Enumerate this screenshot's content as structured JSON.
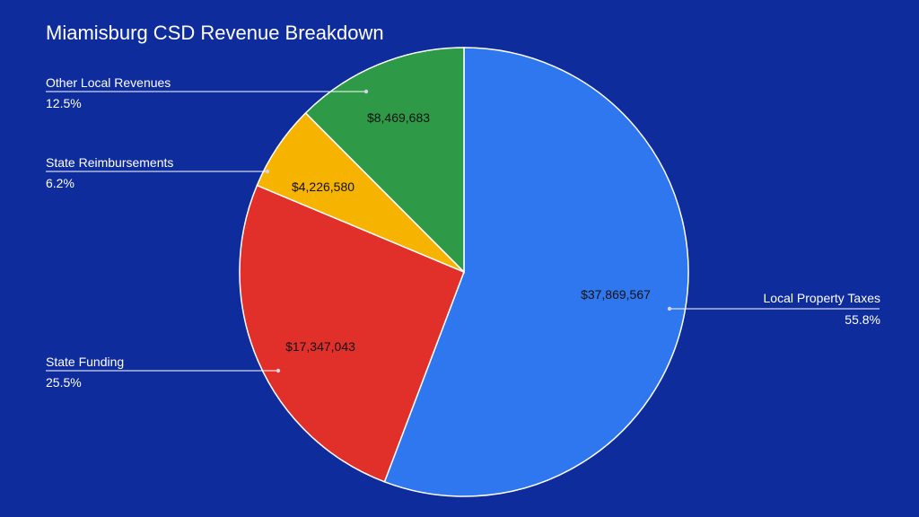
{
  "chart_data": {
    "type": "pie",
    "title": "Miamisburg CSD Revenue Breakdown",
    "slices": [
      {
        "name": "Local Property Taxes",
        "value": 37869567,
        "value_label": "$37,869,567",
        "percent_label": "55.8%",
        "color": "#2f77ef"
      },
      {
        "name": "State Funding",
        "value": 17347043,
        "value_label": "$17,347,043",
        "percent_label": "25.5%",
        "color": "#e1302a"
      },
      {
        "name": "State Reimbursements",
        "value": 4226580,
        "value_label": "$4,226,580",
        "percent_label": "6.2%",
        "color": "#f6b300"
      },
      {
        "name": "Other Local Revenues",
        "value": 8469683,
        "value_label": "$8,469,683",
        "percent_label": "12.5%",
        "color": "#2e9a47"
      }
    ],
    "legend": "side-callouts"
  },
  "colors": {
    "background": "#0f2c9c",
    "text": "#ffffff",
    "slice_border": "#ffffff"
  }
}
